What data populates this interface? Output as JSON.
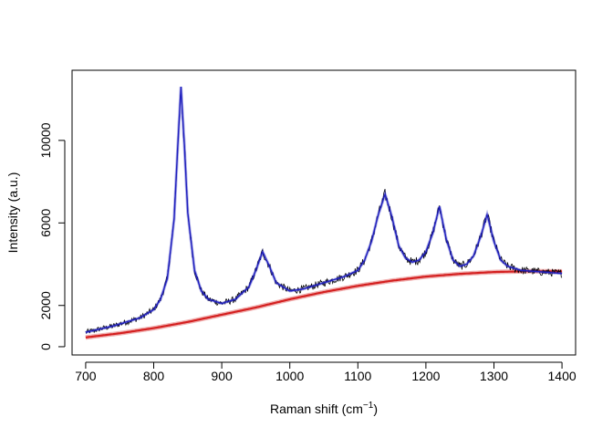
{
  "chart_data": {
    "type": "line",
    "title": "",
    "xlabel": "Raman shift (cm",
    "xlabel_superscript": "−1",
    "xlabel_suffix": ")",
    "ylabel": "Intensity (a.u.)",
    "xlim": [
      680,
      1420
    ],
    "ylim": [
      -400,
      13400
    ],
    "x_ticks": [
      700,
      800,
      900,
      1000,
      1100,
      1200,
      1300,
      1400
    ],
    "x_tick_labels": [
      "700",
      "800",
      "900",
      "1000",
      "1100",
      "1200",
      "1300",
      "1400"
    ],
    "y_ticks": [
      0,
      2000,
      6000,
      10000
    ],
    "y_tick_labels": [
      "0",
      "2000",
      "6000",
      "10000"
    ],
    "grid": false,
    "colors": {
      "raw": "#000000",
      "fit": "#1f1fbf",
      "baseline": "#d42020"
    },
    "series": [
      {
        "style": "raw-noisy-line",
        "x": [
          700,
          720,
          740,
          760,
          780,
          800,
          810,
          820,
          830,
          835,
          840,
          845,
          850,
          860,
          870,
          880,
          900,
          920,
          940,
          950,
          960,
          970,
          980,
          1000,
          1020,
          1040,
          1060,
          1080,
          1100,
          1110,
          1120,
          1130,
          1140,
          1150,
          1160,
          1170,
          1180,
          1190,
          1200,
          1210,
          1220,
          1230,
          1240,
          1250,
          1260,
          1270,
          1280,
          1290,
          1300,
          1310,
          1320,
          1340,
          1360,
          1380,
          1400
        ],
        "y": [
          700,
          850,
          1000,
          1200,
          1400,
          1800,
          2300,
          3300,
          6200,
          9500,
          12600,
          9800,
          6500,
          3700,
          2700,
          2300,
          2100,
          2300,
          2900,
          3700,
          4600,
          3900,
          3100,
          2700,
          2800,
          3000,
          3200,
          3400,
          3700,
          4200,
          5100,
          6400,
          7400,
          6300,
          4900,
          4300,
          4100,
          4200,
          4600,
          5500,
          6800,
          5200,
          4200,
          3900,
          4000,
          4400,
          5300,
          6400,
          5100,
          4200,
          3900,
          3700,
          3650,
          3600,
          3550
        ]
      },
      {
        "style": "fit-band",
        "x": [
          700,
          720,
          740,
          760,
          780,
          800,
          810,
          820,
          830,
          835,
          840,
          845,
          850,
          860,
          870,
          880,
          900,
          920,
          940,
          950,
          960,
          970,
          980,
          1000,
          1020,
          1040,
          1060,
          1080,
          1100,
          1110,
          1120,
          1130,
          1140,
          1150,
          1160,
          1170,
          1180,
          1190,
          1200,
          1210,
          1220,
          1230,
          1240,
          1250,
          1260,
          1270,
          1280,
          1290,
          1300,
          1310,
          1320,
          1340,
          1360,
          1380,
          1400
        ],
        "y": [
          700,
          850,
          1000,
          1200,
          1400,
          1800,
          2300,
          3300,
          6200,
          9500,
          12600,
          9800,
          6500,
          3700,
          2700,
          2300,
          2100,
          2300,
          2900,
          3700,
          4600,
          3900,
          3100,
          2700,
          2800,
          3000,
          3200,
          3400,
          3700,
          4200,
          5100,
          6400,
          7400,
          6300,
          4900,
          4300,
          4100,
          4200,
          4600,
          5500,
          6800,
          5200,
          4200,
          3900,
          4000,
          4400,
          5300,
          6400,
          5100,
          4200,
          3900,
          3700,
          3650,
          3600,
          3550
        ]
      },
      {
        "style": "baseline-band",
        "x": [
          700,
          750,
          800,
          850,
          900,
          950,
          1000,
          1050,
          1100,
          1150,
          1200,
          1250,
          1300,
          1350,
          1400
        ],
        "y": [
          450,
          650,
          900,
          1200,
          1550,
          1900,
          2300,
          2650,
          2950,
          3200,
          3400,
          3530,
          3620,
          3660,
          3650
        ]
      }
    ]
  }
}
